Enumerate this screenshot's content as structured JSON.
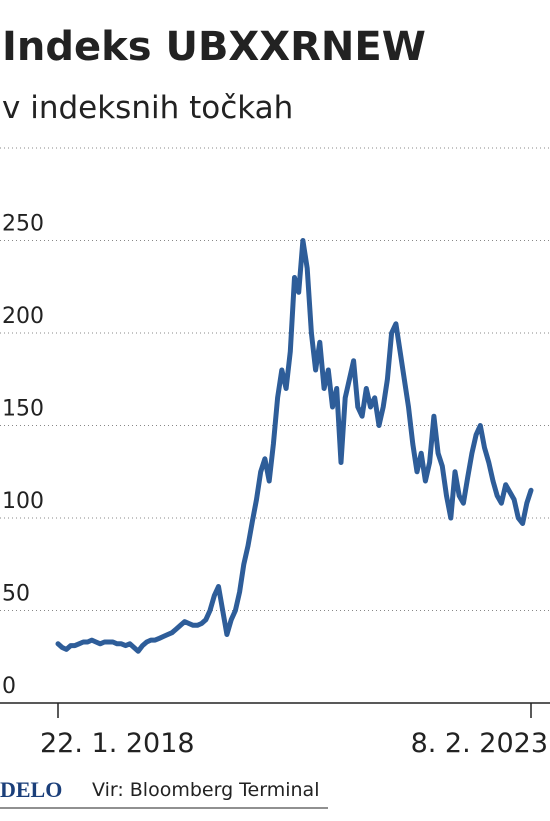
{
  "chart_data": {
    "type": "line",
    "title": "Indeks UBXXRNEW",
    "subtitle": "v indeksnih točkah",
    "categories": [
      "22. 1. 2018",
      null,
      null,
      null,
      null,
      null,
      null,
      null,
      null,
      null,
      null,
      null,
      null,
      null,
      null,
      null,
      null,
      null,
      null,
      null,
      null,
      null,
      null,
      null,
      null,
      null,
      null,
      null,
      null,
      null,
      null,
      null,
      null,
      null,
      null,
      null,
      null,
      null,
      null,
      null,
      null,
      null,
      null,
      null,
      null,
      null,
      null,
      null,
      null,
      null,
      null,
      null,
      null,
      null,
      null,
      null,
      null,
      null,
      null,
      null,
      null,
      null,
      null,
      null,
      null,
      null,
      null,
      null,
      null,
      null,
      null,
      null,
      null,
      null,
      null,
      null,
      null,
      null,
      null,
      null,
      null,
      null,
      null,
      null,
      null,
      null,
      null,
      null,
      null,
      null,
      null,
      null,
      null,
      null,
      null,
      null,
      null,
      null,
      null,
      null,
      null,
      null,
      null,
      null,
      null,
      null,
      null,
      null,
      null,
      null,
      null,
      null,
      "8. 2. 2023"
    ],
    "series": [
      {
        "color": "#2e5d99",
        "values": [
          32,
          30,
          29,
          31,
          31,
          32,
          33,
          33,
          34,
          33,
          32,
          33,
          33,
          33,
          32,
          32,
          31,
          32,
          30,
          28,
          31,
          33,
          34,
          34,
          35,
          36,
          37,
          38,
          40,
          42,
          44,
          43,
          42,
          42,
          43,
          45,
          50,
          58,
          63,
          50,
          37,
          45,
          50,
          60,
          75,
          85,
          98,
          110,
          125,
          132,
          120,
          140,
          165,
          180,
          170,
          190,
          230,
          222,
          250,
          235,
          200,
          180,
          195,
          170,
          180,
          160,
          170,
          130,
          165,
          175,
          185,
          160,
          155,
          170,
          160,
          165,
          150,
          160,
          175,
          200,
          205,
          190,
          175,
          160,
          140,
          125,
          135,
          120,
          130,
          155,
          135,
          128,
          112,
          100,
          125,
          112,
          108,
          122,
          135,
          145,
          150,
          138,
          130,
          120,
          112,
          108,
          118,
          114,
          110,
          100,
          97,
          108,
          115
        ]
      }
    ],
    "ylim": [
      0,
      300
    ],
    "yticks": [
      0,
      50,
      100,
      150,
      200,
      250
    ],
    "grid": true,
    "logo": "DELO",
    "source": "Vir: Bloomberg Terminal"
  }
}
